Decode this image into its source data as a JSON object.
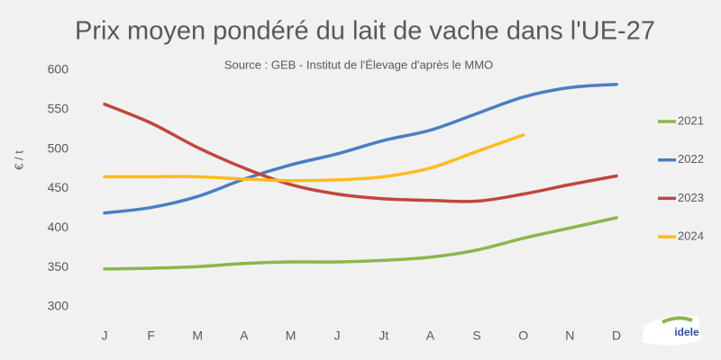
{
  "chart_data": {
    "type": "line",
    "title": "Prix moyen pondéré du lait de vache dans l'UE-27",
    "subtitle": "Source : GEB - Institut de l'Élevage d'après le MMO",
    "y_label": "€ / t",
    "logo": "idele",
    "categories": [
      "J",
      "F",
      "M",
      "A",
      "M",
      "J",
      "Jt",
      "A",
      "S",
      "O",
      "N",
      "D"
    ],
    "series": [
      {
        "name": "2021",
        "color": "#8cb64a",
        "values": [
          348,
          349,
          351,
          355,
          357,
          357,
          359,
          363,
          372,
          387,
          400,
          413
        ]
      },
      {
        "name": "2022",
        "color": "#4a7ec1",
        "values": [
          419,
          426,
          440,
          462,
          480,
          494,
          511,
          524,
          545,
          566,
          578,
          582
        ]
      },
      {
        "name": "2023",
        "color": "#c0463e",
        "values": [
          557,
          533,
          502,
          476,
          455,
          443,
          437,
          435,
          434,
          443,
          455,
          466
        ]
      },
      {
        "name": "2024",
        "color": "#fdbc1e",
        "values": [
          465,
          465,
          465,
          462,
          460,
          461,
          465,
          476,
          497,
          518,
          null,
          null
        ]
      }
    ],
    "ylim": [
      300,
      600
    ],
    "yticks": [
      300,
      350,
      400,
      450,
      500,
      550,
      600
    ],
    "grid": false,
    "legend": "right"
  }
}
